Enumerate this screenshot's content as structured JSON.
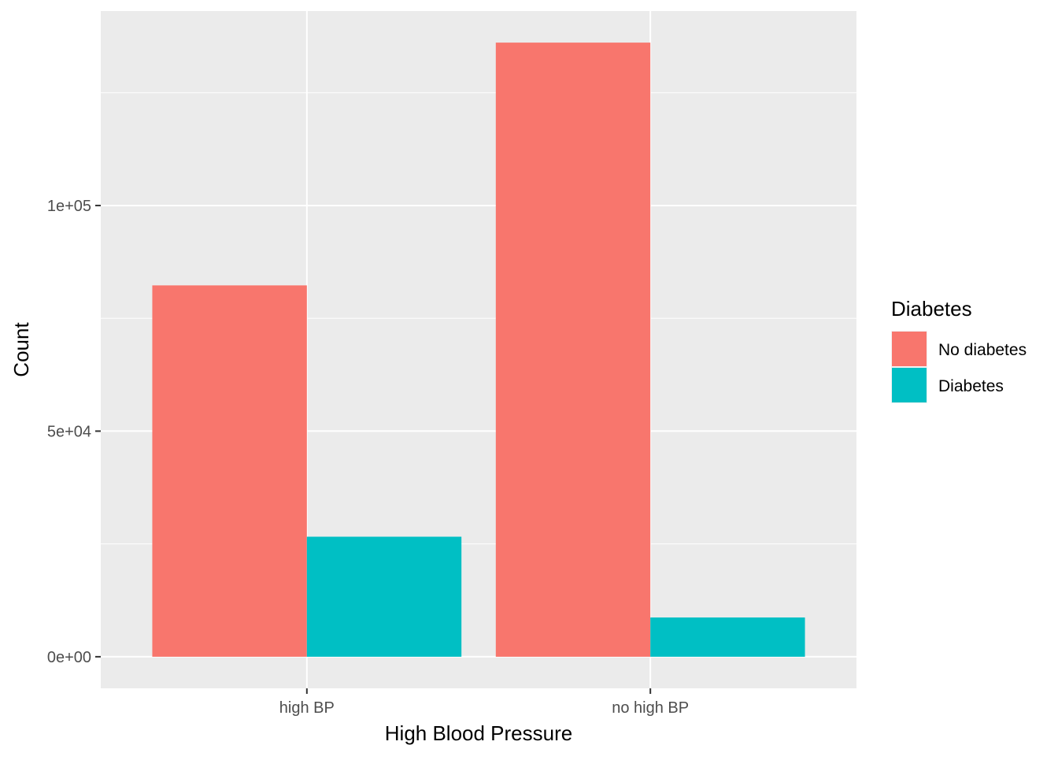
{
  "chart_data": {
    "type": "bar",
    "categories": [
      "high BP",
      "no high BP"
    ],
    "series": [
      {
        "name": "No diabetes",
        "color": "#F8766D",
        "values": [
          82300,
          136100
        ]
      },
      {
        "name": "Diabetes",
        "color": "#00BFC4",
        "values": [
          26600,
          8700
        ]
      }
    ],
    "xlabel": "High Blood Pressure",
    "ylabel": "Count",
    "ylim": [
      -7000,
      143100
    ],
    "yticks": [
      0,
      50000,
      100000
    ],
    "ytick_labels": [
      "0e+00",
      "5e+04",
      "1e+05"
    ],
    "grid": true,
    "panel_background": "#EBEBEB",
    "legend": {
      "title": "Diabetes",
      "position": "right"
    }
  }
}
